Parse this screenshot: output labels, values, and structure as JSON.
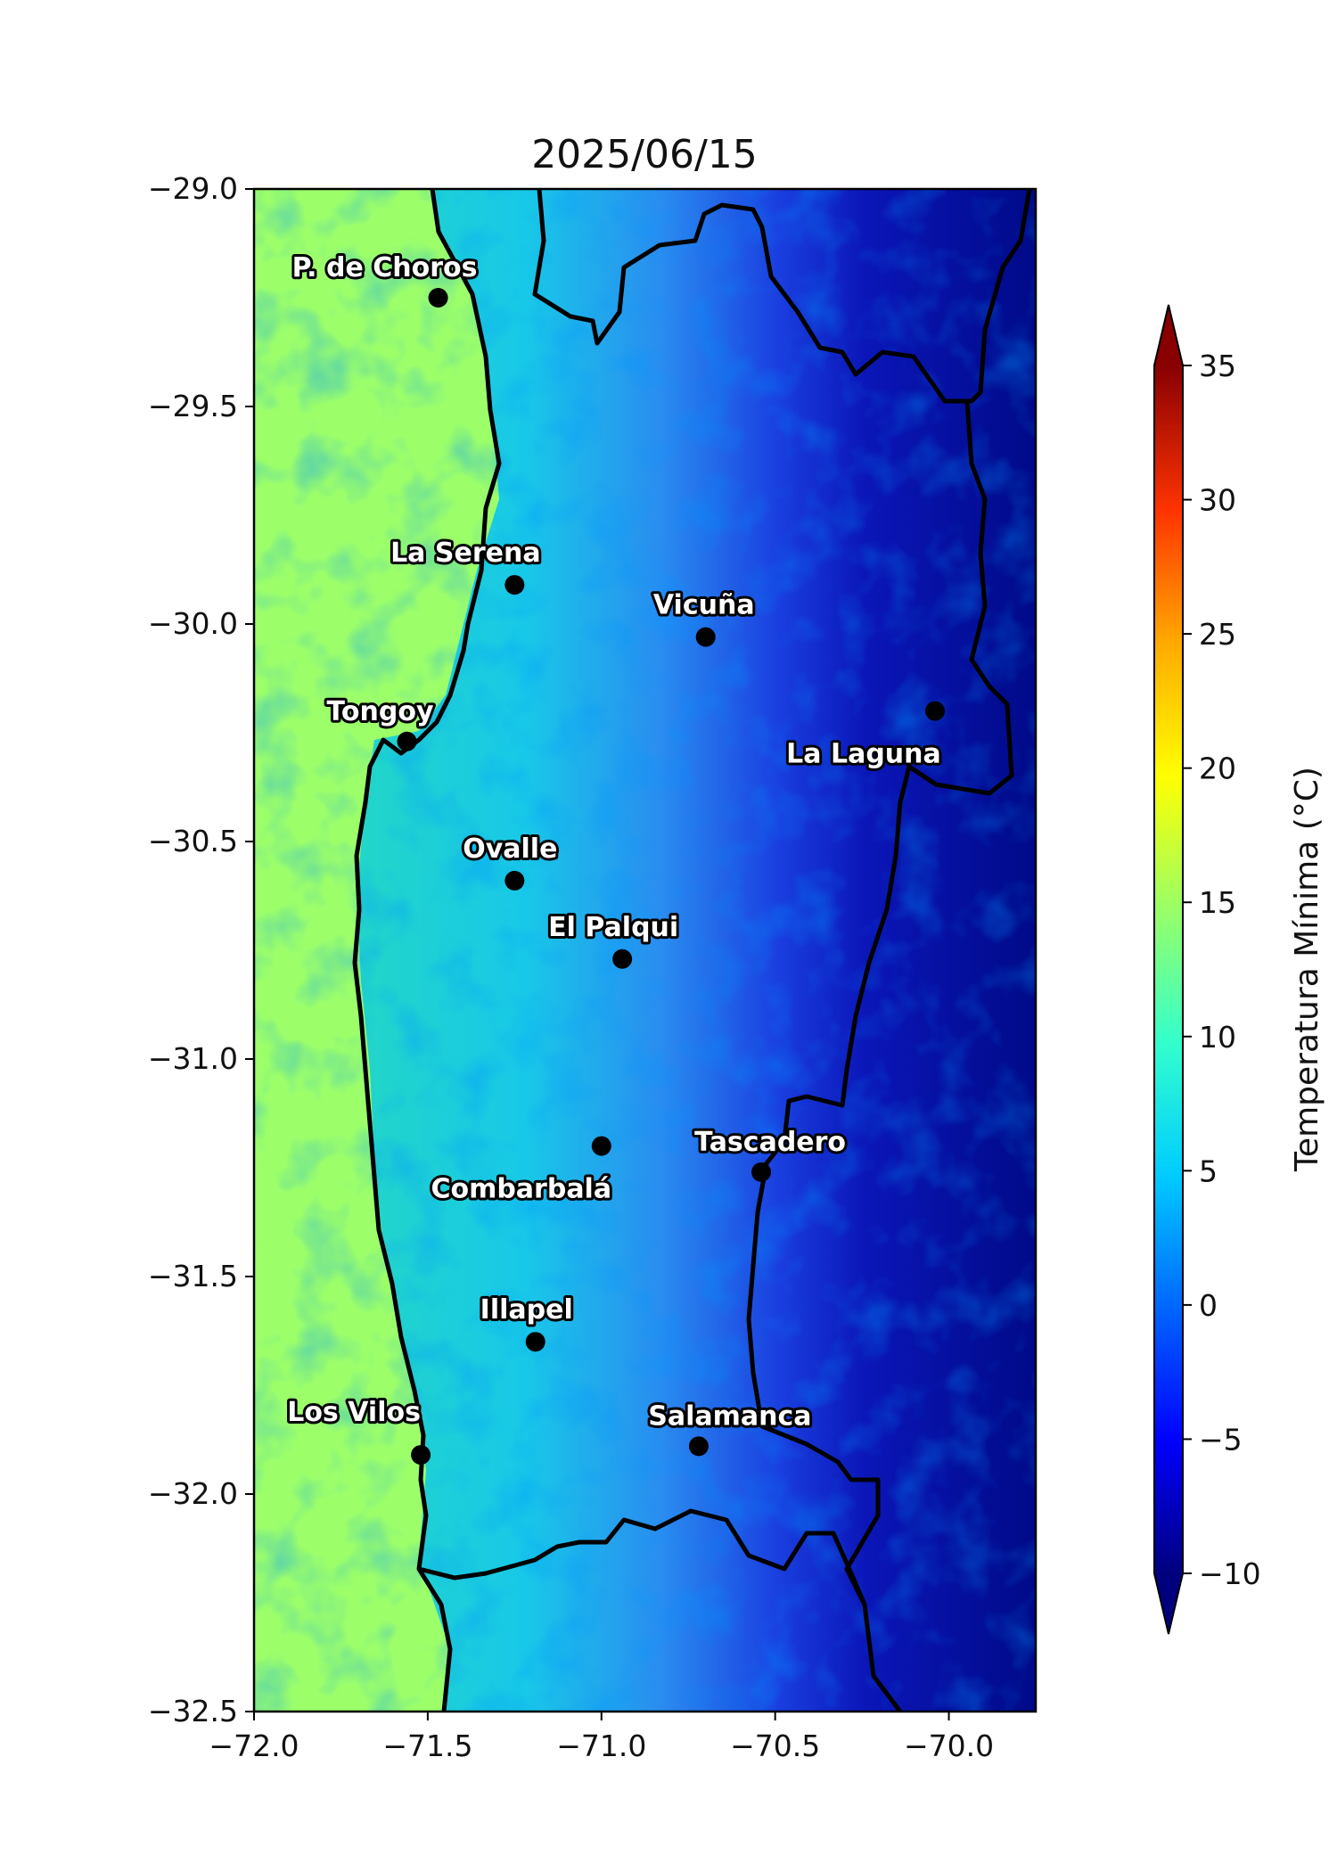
{
  "title": "2025/06/15",
  "colorbar": {
    "label": "Temperatura Mínima (°C)",
    "min": -10,
    "max": 35,
    "ticks": [
      "35",
      "30",
      "25",
      "20",
      "15",
      "10",
      "5",
      "0",
      "−5",
      "−10"
    ],
    "extend": "both",
    "colormap": "jet"
  },
  "axes": {
    "x_ticks": [
      "−72.0",
      "−71.5",
      "−71.0",
      "−70.5",
      "−70.0"
    ],
    "y_ticks": [
      "−29.0",
      "−29.5",
      "−30.0",
      "−30.5",
      "−31.0",
      "−31.5",
      "−32.0",
      "−32.5"
    ],
    "xlim": [
      -72.0,
      -69.75
    ],
    "ylim": [
      -32.5,
      -29.0
    ]
  },
  "chart_data": {
    "type": "heatmap",
    "title": "2025/06/15",
    "xlim": [
      -72.0,
      -69.75
    ],
    "ylim": [
      -32.5,
      -29.0
    ],
    "value_label": "Temperatura Mínima (°C)",
    "value_range": [
      -10,
      35
    ],
    "field_pattern": "ocean ~14 °C in the west, coastal valleys 6-12 °C, decreasing eastward to below -10 °C over the Andes",
    "stations": [
      {
        "name": "P. de Choros",
        "lon": -71.47,
        "lat": -29.25
      },
      {
        "name": "La Serena",
        "lon": -71.25,
        "lat": -29.91
      },
      {
        "name": "Vicuña",
        "lon": -70.7,
        "lat": -30.03
      },
      {
        "name": "Tongoy",
        "lon": -71.56,
        "lat": -30.27
      },
      {
        "name": "La Laguna",
        "lon": -70.04,
        "lat": -30.2
      },
      {
        "name": "Ovalle",
        "lon": -71.25,
        "lat": -30.59
      },
      {
        "name": "El Palqui",
        "lon": -70.94,
        "lat": -30.77
      },
      {
        "name": "Combarbalá",
        "lon": -71.0,
        "lat": -31.2
      },
      {
        "name": "Tascadero",
        "lon": -70.54,
        "lat": -31.26
      },
      {
        "name": "Illapel",
        "lon": -71.19,
        "lat": -31.65
      },
      {
        "name": "Los Vilos",
        "lon": -71.52,
        "lat": -31.91
      },
      {
        "name": "Salamanca",
        "lon": -70.72,
        "lat": -31.89
      }
    ]
  }
}
